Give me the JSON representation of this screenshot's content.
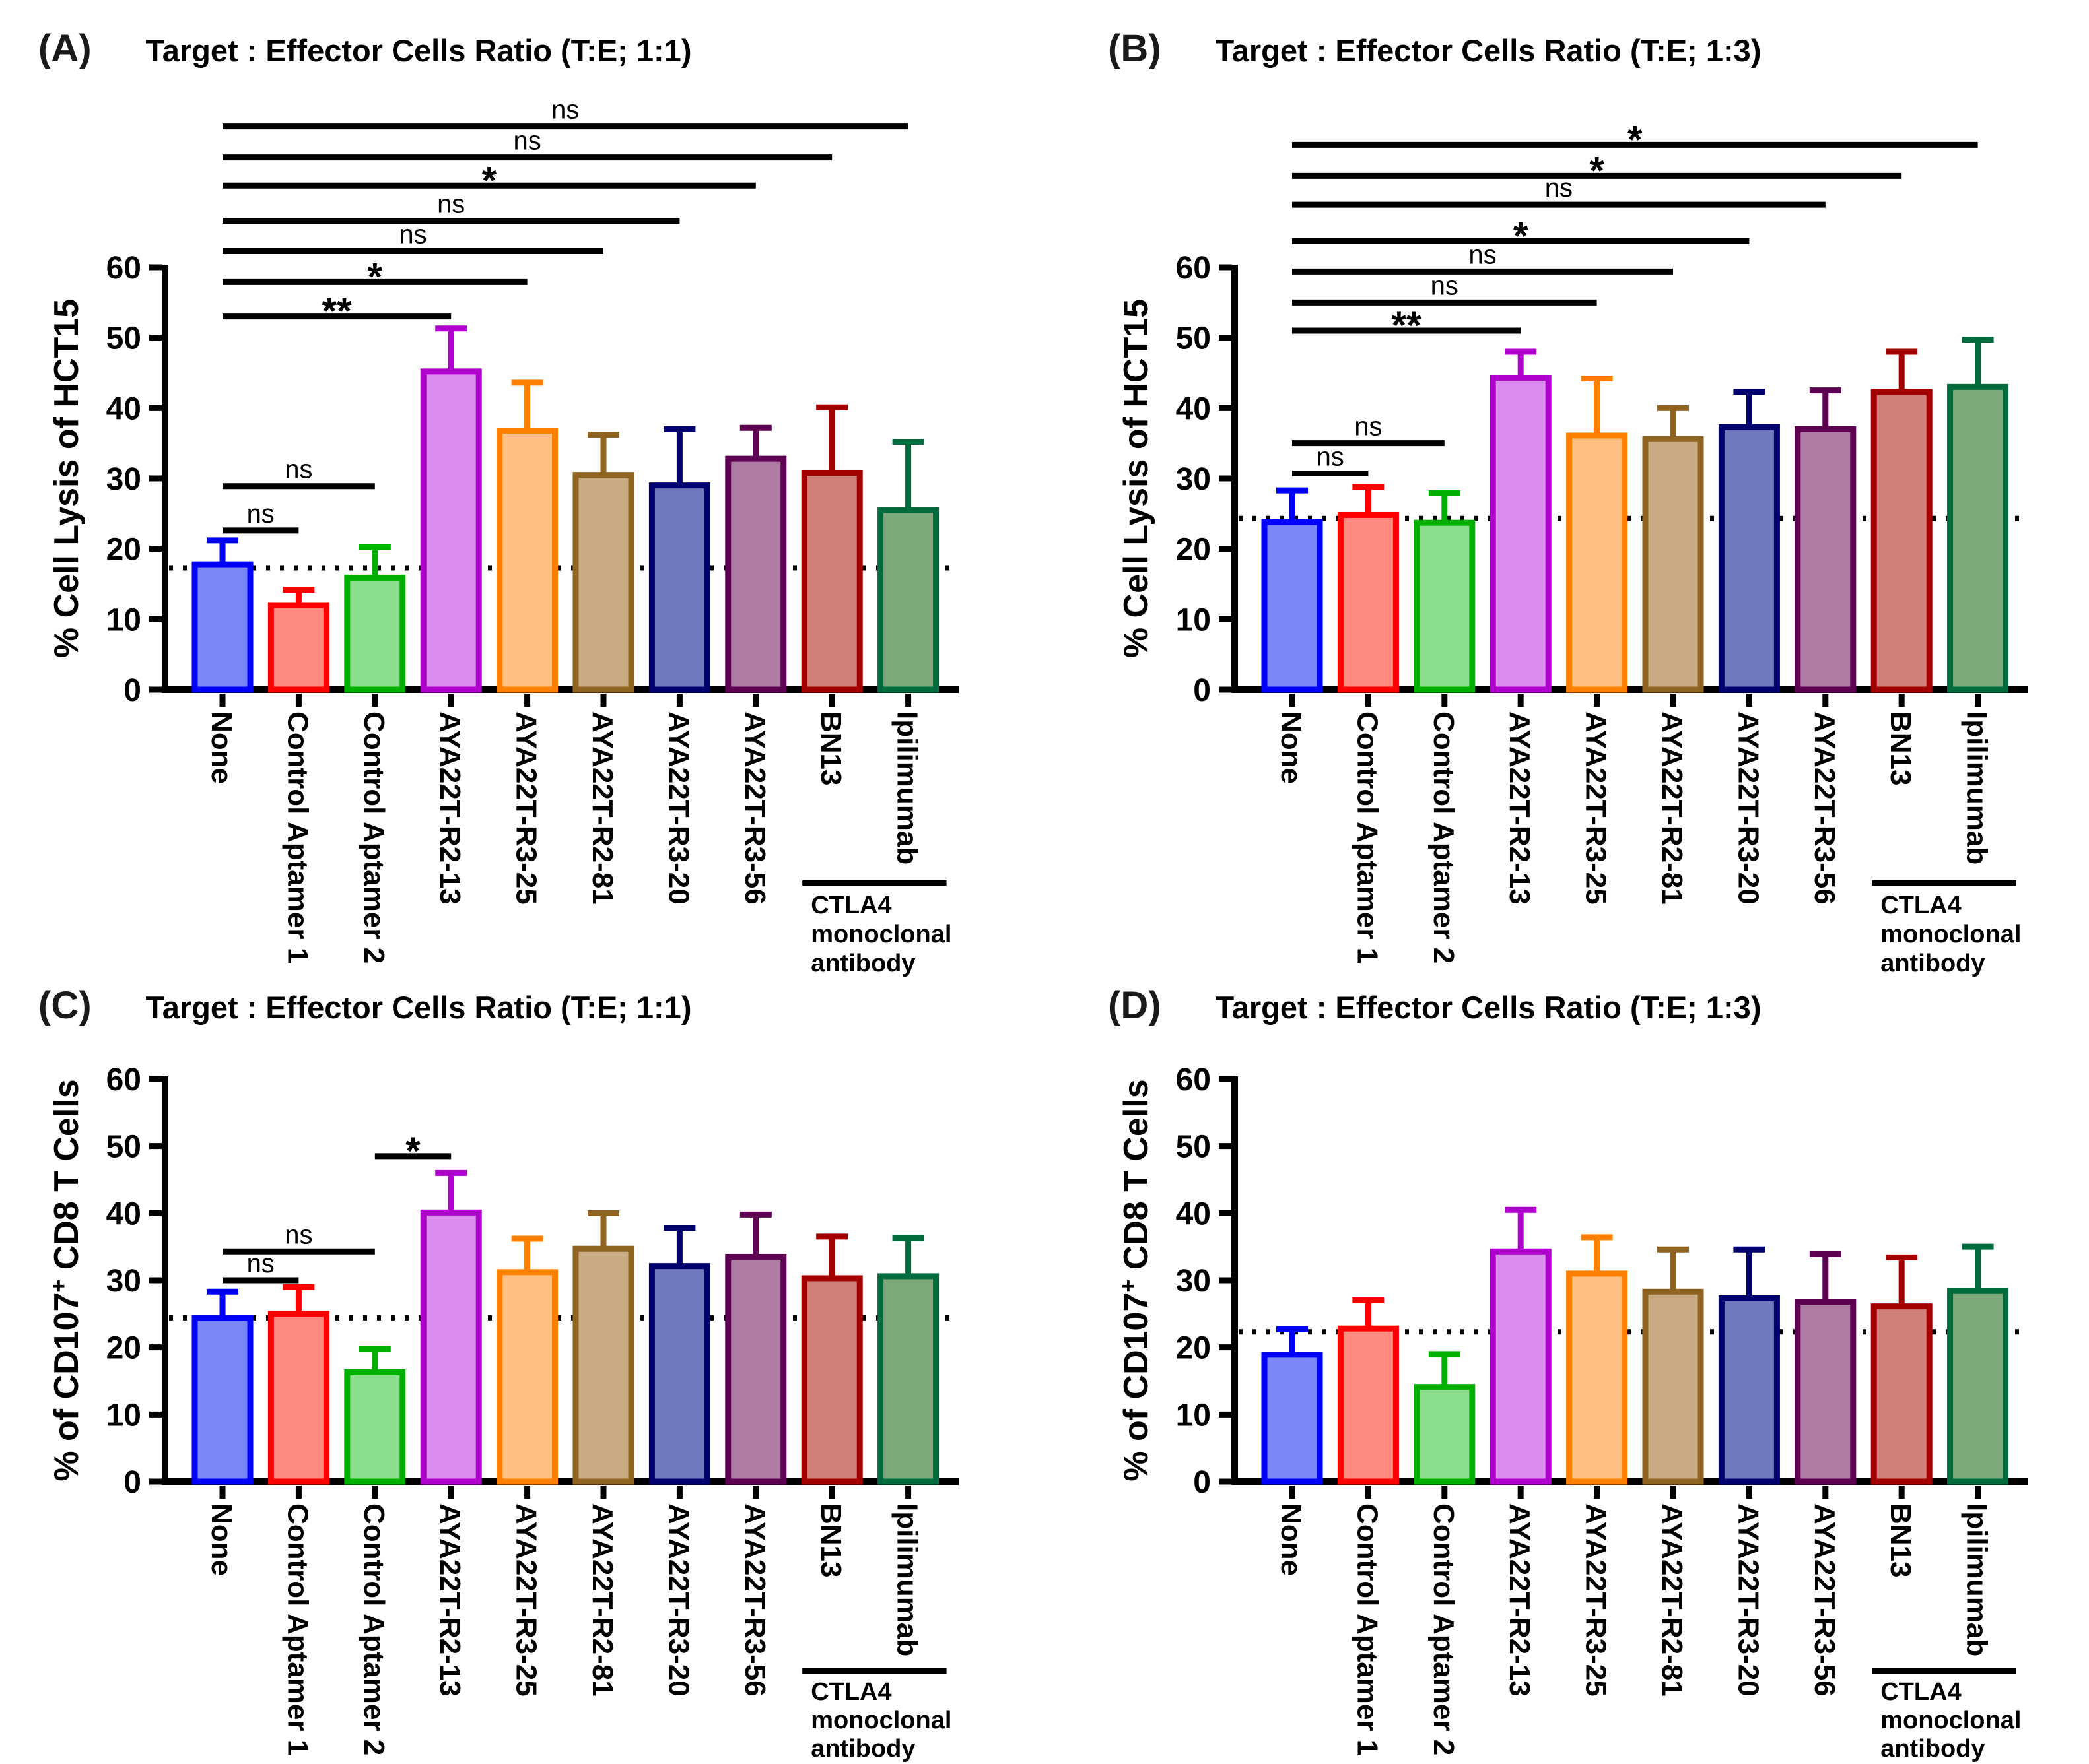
{
  "figure": {
    "background": "#FFFFFF",
    "panels": [
      {
        "letter": "(A)",
        "title": "Target : Effector Cells Ratio (T:E; 1:1)"
      },
      {
        "letter": "(B)",
        "title": "Target : Effector Cells Ratio (T:E; 1:3)"
      },
      {
        "letter": "(C)",
        "title": "Target : Effector Cells Ratio (T:E; 1:1)"
      },
      {
        "letter": "(D)",
        "title": "Target : Effector Cells Ratio (T:E; 1:3)"
      }
    ]
  },
  "style": {
    "axis_color": "#000000",
    "sig_line_color": "#000000",
    "dotted_line_color": "#000000",
    "bar_colors": [
      {
        "category": "None",
        "border": "#0000FF",
        "fill": "#7B86F8"
      },
      {
        "category": "Control Aptamer 1",
        "border": "#FF0000",
        "fill": "#FF8A80"
      },
      {
        "category": "Control Aptamer 2",
        "border": "#00B000",
        "fill": "#8BDE8B"
      },
      {
        "category": "AYA22T-R2-13",
        "border": "#B000CE",
        "fill": "#DB8CEE"
      },
      {
        "category": "AYA22T-R3-25",
        "border": "#FF8000",
        "fill": "#FFBE82"
      },
      {
        "category": "AYA22T-R2-81",
        "border": "#8F6320",
        "fill": "#C9AC84"
      },
      {
        "category": "AYA22T-R3-20",
        "border": "#00006E",
        "fill": "#6F7ABE"
      },
      {
        "category": "AYA22T-R3-56",
        "border": "#5E0052",
        "fill": "#AE7BA4"
      },
      {
        "category": "BN13",
        "border": "#A30000",
        "fill": "#CF7F77"
      },
      {
        "category": "Ipilimumab",
        "border": "#006B3C",
        "fill": "#7CA87A"
      }
    ]
  },
  "chart_data": [
    {
      "panel": "A",
      "type": "bar",
      "title": "Target : Effector Cells Ratio (T:E; 1:1)",
      "xlabel": "",
      "ylabel": "% Cell Lysis of HCT15",
      "ylabel_parts": [
        {
          "text": "% Cell Lysis of HCT15",
          "sup": false
        }
      ],
      "ylim": [
        0,
        60
      ],
      "yticks": [
        0,
        10,
        20,
        30,
        40,
        50,
        60
      ],
      "grid": false,
      "categories": [
        "None",
        "Control Aptamer 1",
        "Control Aptamer 2",
        "AYA22T-R2-13",
        "AYA22T-R3-25",
        "AYA22T-R2-81",
        "AYA22T-R3-20",
        "AYA22T-R3-56",
        "BN13",
        "Ipilimumab"
      ],
      "values": [
        17.8,
        12.0,
        15.9,
        45.2,
        36.8,
        30.5,
        29.0,
        32.8,
        30.8,
        25.5
      ],
      "sd_upper": [
        3.4,
        2.2,
        4.3,
        6.1,
        6.8,
        5.7,
        8.0,
        4.4,
        9.3,
        9.7
      ],
      "dotted_line_y": 17.3,
      "significance": [
        {
          "from": "None",
          "to": "Ipilimumab",
          "label": "ns",
          "y": 80.0
        },
        {
          "from": "None",
          "to": "BN13",
          "label": "ns",
          "y": 75.6
        },
        {
          "from": "None",
          "to": "AYA22T-R3-56",
          "label": "*",
          "y": 71.6
        },
        {
          "from": "None",
          "to": "AYA22T-R3-20",
          "label": "ns",
          "y": 66.6
        },
        {
          "from": "None",
          "to": "AYA22T-R2-81",
          "label": "ns",
          "y": 62.3
        },
        {
          "from": "None",
          "to": "AYA22T-R3-25",
          "label": "*",
          "y": 57.9
        },
        {
          "from": "None",
          "to": "AYA22T-R2-13",
          "label": "**",
          "y": 53.0
        },
        {
          "from": "None",
          "to": "Control Aptamer 2",
          "label": "ns",
          "y": 28.9
        },
        {
          "from": "None",
          "to": "Control Aptamer 1",
          "label": "ns",
          "y": 22.6
        }
      ],
      "group_annotation": {
        "from": "BN13",
        "to": "Ipilimumab",
        "text_lines": [
          "CTLA4",
          "monoclonal",
          "antibody"
        ]
      }
    },
    {
      "panel": "B",
      "type": "bar",
      "title": "Target : Effector Cells Ratio (T:E; 1:3)",
      "xlabel": "",
      "ylabel": "% Cell Lysis of HCT15",
      "ylabel_parts": [
        {
          "text": "% Cell Lysis of HCT15",
          "sup": false
        }
      ],
      "ylim": [
        0,
        60
      ],
      "yticks": [
        0,
        10,
        20,
        30,
        40,
        50,
        60
      ],
      "grid": false,
      "categories": [
        "None",
        "Control Aptamer 1",
        "Control Aptamer 2",
        "AYA22T-R2-13",
        "AYA22T-R3-25",
        "AYA22T-R2-81",
        "AYA22T-R3-20",
        "AYA22T-R3-56",
        "BN13",
        "Ipilimumab"
      ],
      "values": [
        23.8,
        24.8,
        23.7,
        44.3,
        36.1,
        35.6,
        37.3,
        37.0,
        42.3,
        43.0
      ],
      "sd_upper": [
        4.5,
        4.0,
        4.2,
        3.7,
        8.1,
        4.4,
        5.0,
        5.5,
        5.7,
        6.7
      ],
      "dotted_line_y": 24.3,
      "significance": [
        {
          "from": "None",
          "to": "Ipilimumab",
          "label": "*",
          "y": 77.4
        },
        {
          "from": "None",
          "to": "BN13",
          "label": "*",
          "y": 73.0
        },
        {
          "from": "None",
          "to": "AYA22T-R3-56",
          "label": "ns",
          "y": 68.9
        },
        {
          "from": "None",
          "to": "AYA22T-R3-20",
          "label": "*",
          "y": 63.7
        },
        {
          "from": "None",
          "to": "AYA22T-R2-81",
          "label": "ns",
          "y": 59.4
        },
        {
          "from": "None",
          "to": "AYA22T-R3-25",
          "label": "ns",
          "y": 55.0
        },
        {
          "from": "None",
          "to": "AYA22T-R2-13",
          "label": "**",
          "y": 51.0
        },
        {
          "from": "None",
          "to": "Control Aptamer 2",
          "label": "ns",
          "y": 35.0
        },
        {
          "from": "None",
          "to": "Control Aptamer 1",
          "label": "ns",
          "y": 30.7
        }
      ],
      "group_annotation": {
        "from": "BN13",
        "to": "Ipilimumab",
        "text_lines": [
          "CTLA4",
          "monoclonal",
          "antibody"
        ]
      }
    },
    {
      "panel": "C",
      "type": "bar",
      "title": "Target : Effector Cells Ratio (T:E; 1:1)",
      "xlabel": "",
      "ylabel": "% of CD107+ CD8 T Cells",
      "ylabel_parts": [
        {
          "text": "% of CD107",
          "sup": false
        },
        {
          "text": "+",
          "sup": true
        },
        {
          "text": " CD8 T Cells",
          "sup": false
        }
      ],
      "ylim": [
        0,
        60
      ],
      "yticks": [
        0,
        10,
        20,
        30,
        40,
        50,
        60
      ],
      "grid": false,
      "categories": [
        "None",
        "Control Aptamer 1",
        "Control Aptamer 2",
        "AYA22T-R2-13",
        "AYA22T-R3-25",
        "AYA22T-R2-81",
        "AYA22T-R3-20",
        "AYA22T-R3-56",
        "BN13",
        "Ipilimumab"
      ],
      "values": [
        24.4,
        25.0,
        16.3,
        40.1,
        31.2,
        34.7,
        32.1,
        33.5,
        30.3,
        30.6
      ],
      "sd_upper": [
        3.9,
        4.0,
        3.5,
        5.9,
        5.0,
        5.3,
        5.7,
        6.3,
        6.2,
        5.7
      ],
      "dotted_line_y": 24.4,
      "significance": [
        {
          "from": "Control Aptamer 2",
          "to": "AYA22T-R2-13",
          "label": "*",
          "y": 48.5
        },
        {
          "from": "None",
          "to": "Control Aptamer 2",
          "label": "ns",
          "y": 34.3
        },
        {
          "from": "None",
          "to": "Control Aptamer 1",
          "label": "ns",
          "y": 30.0
        }
      ],
      "group_annotation": {
        "from": "BN13",
        "to": "Ipilimumab",
        "text_lines": [
          "CTLA4",
          "monoclonal",
          "antibody"
        ]
      }
    },
    {
      "panel": "D",
      "type": "bar",
      "title": "Target : Effector Cells Ratio (T:E; 1:3)",
      "xlabel": "",
      "ylabel": "% of CD107+ CD8 T Cells",
      "ylabel_parts": [
        {
          "text": "% of CD107",
          "sup": false
        },
        {
          "text": "+",
          "sup": true
        },
        {
          "text": " CD8 T Cells",
          "sup": false
        }
      ],
      "ylim": [
        0,
        60
      ],
      "yticks": [
        0,
        10,
        20,
        30,
        40,
        50,
        60
      ],
      "grid": false,
      "categories": [
        "None",
        "Control Aptamer 1",
        "Control Aptamer 2",
        "AYA22T-R2-13",
        "AYA22T-R3-25",
        "AYA22T-R2-81",
        "AYA22T-R3-20",
        "AYA22T-R3-56",
        "BN13",
        "Ipilimumab"
      ],
      "values": [
        18.9,
        22.8,
        14.1,
        34.3,
        31.0,
        28.3,
        27.3,
        26.8,
        26.1,
        28.4
      ],
      "sd_upper": [
        3.8,
        4.2,
        4.9,
        6.2,
        5.4,
        6.3,
        7.3,
        7.1,
        7.3,
        6.6
      ],
      "dotted_line_y": 22.3,
      "significance": [],
      "group_annotation": {
        "from": "BN13",
        "to": "Ipilimumab",
        "text_lines": [
          "CTLA4",
          "monoclonal",
          "antibody"
        ]
      }
    }
  ]
}
